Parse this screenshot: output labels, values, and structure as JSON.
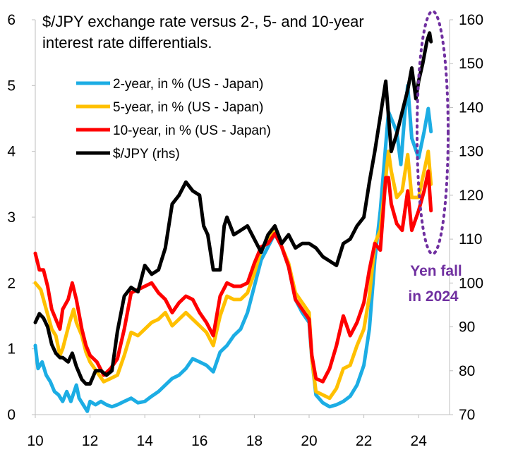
{
  "chart_data": {
    "type": "line",
    "title_lines": [
      "$/JPY exchange rate versus 2-, 5- and 10-year",
      "interest rate differentials."
    ],
    "x_ticks": [
      10,
      12,
      14,
      16,
      18,
      20,
      22,
      24
    ],
    "xlim": [
      2010,
      2025
    ],
    "y_left": {
      "lim": [
        0,
        6
      ],
      "ticks": [
        0,
        1,
        2,
        3,
        4,
        5,
        6
      ]
    },
    "y_right": {
      "lim": [
        70,
        160
      ],
      "ticks": [
        70,
        80,
        90,
        100,
        110,
        120,
        130,
        140,
        150,
        160
      ]
    },
    "series": [
      {
        "name": "2-year, in % (US - Japan)",
        "axis": "left",
        "color": "#1CADE4",
        "points": [
          [
            2010.0,
            1.05
          ],
          [
            2010.1,
            0.7
          ],
          [
            2010.25,
            0.8
          ],
          [
            2010.4,
            0.6
          ],
          [
            2010.55,
            0.5
          ],
          [
            2010.7,
            0.35
          ],
          [
            2010.85,
            0.3
          ],
          [
            2011.0,
            0.2
          ],
          [
            2011.15,
            0.35
          ],
          [
            2011.3,
            0.2
          ],
          [
            2011.5,
            0.45
          ],
          [
            2011.6,
            0.25
          ],
          [
            2011.75,
            0.15
          ],
          [
            2011.9,
            0.05
          ],
          [
            2012.0,
            0.2
          ],
          [
            2012.2,
            0.15
          ],
          [
            2012.4,
            0.2
          ],
          [
            2012.6,
            0.15
          ],
          [
            2012.8,
            0.12
          ],
          [
            2013.0,
            0.15
          ],
          [
            2013.25,
            0.2
          ],
          [
            2013.5,
            0.25
          ],
          [
            2013.75,
            0.18
          ],
          [
            2014.0,
            0.2
          ],
          [
            2014.25,
            0.28
          ],
          [
            2014.5,
            0.35
          ],
          [
            2014.75,
            0.45
          ],
          [
            2015.0,
            0.55
          ],
          [
            2015.25,
            0.6
          ],
          [
            2015.5,
            0.7
          ],
          [
            2015.75,
            0.85
          ],
          [
            2016.0,
            0.8
          ],
          [
            2016.25,
            0.75
          ],
          [
            2016.5,
            0.65
          ],
          [
            2016.75,
            0.95
          ],
          [
            2017.0,
            1.05
          ],
          [
            2017.25,
            1.2
          ],
          [
            2017.5,
            1.3
          ],
          [
            2017.75,
            1.55
          ],
          [
            2018.0,
            1.95
          ],
          [
            2018.25,
            2.35
          ],
          [
            2018.5,
            2.55
          ],
          [
            2018.75,
            2.75
          ],
          [
            2019.0,
            2.55
          ],
          [
            2019.25,
            2.25
          ],
          [
            2019.5,
            1.75
          ],
          [
            2019.75,
            1.55
          ],
          [
            2020.0,
            1.4
          ],
          [
            2020.1,
            0.85
          ],
          [
            2020.25,
            0.3
          ],
          [
            2020.5,
            0.18
          ],
          [
            2020.75,
            0.12
          ],
          [
            2021.0,
            0.15
          ],
          [
            2021.25,
            0.2
          ],
          [
            2021.5,
            0.28
          ],
          [
            2021.75,
            0.45
          ],
          [
            2022.0,
            0.75
          ],
          [
            2022.2,
            1.3
          ],
          [
            2022.4,
            2.35
          ],
          [
            2022.6,
            3.1
          ],
          [
            2022.8,
            4.1
          ],
          [
            2022.9,
            4.6
          ],
          [
            2023.0,
            4.5
          ],
          [
            2023.2,
            4.3
          ],
          [
            2023.35,
            3.8
          ],
          [
            2023.5,
            4.6
          ],
          [
            2023.6,
            5.0
          ],
          [
            2023.75,
            4.2
          ],
          [
            2024.0,
            3.9
          ],
          [
            2024.2,
            4.3
          ],
          [
            2024.35,
            4.65
          ],
          [
            2024.45,
            4.3
          ]
        ]
      },
      {
        "name": "5-year, in % (US - Japan)",
        "axis": "left",
        "color": "#FFC000",
        "points": [
          [
            2010.0,
            2.0
          ],
          [
            2010.2,
            1.9
          ],
          [
            2010.4,
            1.6
          ],
          [
            2010.6,
            1.3
          ],
          [
            2010.75,
            1.2
          ],
          [
            2010.9,
            0.9
          ],
          [
            2011.0,
            1.0
          ],
          [
            2011.25,
            1.4
          ],
          [
            2011.4,
            1.6
          ],
          [
            2011.5,
            1.4
          ],
          [
            2011.7,
            1.2
          ],
          [
            2011.85,
            0.95
          ],
          [
            2012.0,
            0.8
          ],
          [
            2012.25,
            0.65
          ],
          [
            2012.5,
            0.5
          ],
          [
            2012.75,
            0.55
          ],
          [
            2013.0,
            0.6
          ],
          [
            2013.25,
            0.9
          ],
          [
            2013.5,
            1.25
          ],
          [
            2013.75,
            1.2
          ],
          [
            2014.0,
            1.3
          ],
          [
            2014.25,
            1.4
          ],
          [
            2014.5,
            1.45
          ],
          [
            2014.75,
            1.55
          ],
          [
            2015.0,
            1.35
          ],
          [
            2015.25,
            1.45
          ],
          [
            2015.5,
            1.55
          ],
          [
            2015.75,
            1.45
          ],
          [
            2016.0,
            1.35
          ],
          [
            2016.25,
            1.25
          ],
          [
            2016.5,
            1.05
          ],
          [
            2016.75,
            1.5
          ],
          [
            2017.0,
            1.8
          ],
          [
            2017.25,
            1.75
          ],
          [
            2017.5,
            1.75
          ],
          [
            2017.75,
            1.85
          ],
          [
            2018.0,
            2.15
          ],
          [
            2018.25,
            2.5
          ],
          [
            2018.5,
            2.65
          ],
          [
            2018.75,
            2.85
          ],
          [
            2019.0,
            2.55
          ],
          [
            2019.25,
            2.3
          ],
          [
            2019.5,
            1.85
          ],
          [
            2019.75,
            1.7
          ],
          [
            2020.0,
            1.55
          ],
          [
            2020.1,
            0.85
          ],
          [
            2020.25,
            0.35
          ],
          [
            2020.5,
            0.3
          ],
          [
            2020.75,
            0.25
          ],
          [
            2021.0,
            0.4
          ],
          [
            2021.25,
            0.7
          ],
          [
            2021.5,
            0.75
          ],
          [
            2021.75,
            1.05
          ],
          [
            2022.0,
            1.3
          ],
          [
            2022.2,
            1.8
          ],
          [
            2022.4,
            2.6
          ],
          [
            2022.6,
            2.8
          ],
          [
            2022.8,
            3.6
          ],
          [
            2022.9,
            4.0
          ],
          [
            2023.0,
            3.7
          ],
          [
            2023.2,
            3.3
          ],
          [
            2023.4,
            3.4
          ],
          [
            2023.6,
            3.95
          ],
          [
            2023.75,
            3.3
          ],
          [
            2024.0,
            3.3
          ],
          [
            2024.2,
            3.7
          ],
          [
            2024.35,
            4.0
          ],
          [
            2024.45,
            3.5
          ]
        ]
      },
      {
        "name": "10-year, in % (US - Japan)",
        "axis": "left",
        "color": "#FF0000",
        "points": [
          [
            2010.0,
            2.45
          ],
          [
            2010.15,
            2.2
          ],
          [
            2010.3,
            2.2
          ],
          [
            2010.45,
            1.95
          ],
          [
            2010.6,
            1.6
          ],
          [
            2010.75,
            1.45
          ],
          [
            2010.9,
            1.3
          ],
          [
            2011.0,
            1.6
          ],
          [
            2011.2,
            1.75
          ],
          [
            2011.35,
            2.0
          ],
          [
            2011.5,
            1.75
          ],
          [
            2011.7,
            1.3
          ],
          [
            2011.85,
            1.05
          ],
          [
            2012.0,
            0.9
          ],
          [
            2012.25,
            0.8
          ],
          [
            2012.5,
            0.6
          ],
          [
            2012.75,
            0.7
          ],
          [
            2013.0,
            0.85
          ],
          [
            2013.25,
            1.3
          ],
          [
            2013.5,
            1.85
          ],
          [
            2013.75,
            1.9
          ],
          [
            2014.0,
            1.95
          ],
          [
            2014.25,
            2.0
          ],
          [
            2014.5,
            1.85
          ],
          [
            2014.75,
            1.75
          ],
          [
            2015.0,
            1.55
          ],
          [
            2015.25,
            1.7
          ],
          [
            2015.5,
            1.8
          ],
          [
            2015.75,
            1.75
          ],
          [
            2016.0,
            1.55
          ],
          [
            2016.25,
            1.4
          ],
          [
            2016.5,
            1.2
          ],
          [
            2016.75,
            1.8
          ],
          [
            2017.0,
            2.0
          ],
          [
            2017.25,
            1.95
          ],
          [
            2017.5,
            1.95
          ],
          [
            2017.75,
            2.0
          ],
          [
            2018.0,
            2.3
          ],
          [
            2018.25,
            2.55
          ],
          [
            2018.5,
            2.6
          ],
          [
            2018.75,
            2.75
          ],
          [
            2019.0,
            2.55
          ],
          [
            2019.25,
            2.25
          ],
          [
            2019.5,
            1.75
          ],
          [
            2019.75,
            1.6
          ],
          [
            2020.0,
            1.45
          ],
          [
            2020.1,
            0.9
          ],
          [
            2020.25,
            0.55
          ],
          [
            2020.5,
            0.5
          ],
          [
            2020.75,
            0.7
          ],
          [
            2021.0,
            1.05
          ],
          [
            2021.25,
            1.5
          ],
          [
            2021.5,
            1.2
          ],
          [
            2021.75,
            1.4
          ],
          [
            2022.0,
            1.7
          ],
          [
            2022.2,
            2.2
          ],
          [
            2022.4,
            2.6
          ],
          [
            2022.6,
            2.5
          ],
          [
            2022.8,
            3.6
          ],
          [
            2022.9,
            3.6
          ],
          [
            2023.0,
            3.2
          ],
          [
            2023.2,
            2.9
          ],
          [
            2023.4,
            2.8
          ],
          [
            2023.6,
            3.4
          ],
          [
            2023.75,
            2.8
          ],
          [
            2024.0,
            3.1
          ],
          [
            2024.2,
            3.4
          ],
          [
            2024.35,
            3.7
          ],
          [
            2024.45,
            3.1
          ]
        ]
      },
      {
        "name": "$/JPY (rhs)",
        "axis": "right",
        "color": "#000000",
        "points": [
          [
            2010.0,
            91
          ],
          [
            2010.15,
            93
          ],
          [
            2010.3,
            92
          ],
          [
            2010.45,
            90
          ],
          [
            2010.6,
            86
          ],
          [
            2010.75,
            84
          ],
          [
            2010.9,
            83
          ],
          [
            2011.0,
            83
          ],
          [
            2011.2,
            82
          ],
          [
            2011.35,
            84
          ],
          [
            2011.5,
            81
          ],
          [
            2011.7,
            78
          ],
          [
            2011.85,
            77
          ],
          [
            2012.0,
            77
          ],
          [
            2012.2,
            80
          ],
          [
            2012.4,
            80
          ],
          [
            2012.6,
            79
          ],
          [
            2012.8,
            80
          ],
          [
            2013.0,
            89
          ],
          [
            2013.25,
            97
          ],
          [
            2013.5,
            99
          ],
          [
            2013.75,
            98
          ],
          [
            2014.0,
            104
          ],
          [
            2014.25,
            102
          ],
          [
            2014.5,
            103
          ],
          [
            2014.75,
            108
          ],
          [
            2015.0,
            118
          ],
          [
            2015.25,
            120
          ],
          [
            2015.5,
            123
          ],
          [
            2015.75,
            121
          ],
          [
            2016.0,
            120
          ],
          [
            2016.15,
            113
          ],
          [
            2016.3,
            111
          ],
          [
            2016.5,
            103
          ],
          [
            2016.75,
            103
          ],
          [
            2016.9,
            113
          ],
          [
            2017.0,
            115
          ],
          [
            2017.25,
            111
          ],
          [
            2017.5,
            112
          ],
          [
            2017.75,
            113
          ],
          [
            2018.0,
            110
          ],
          [
            2018.25,
            107
          ],
          [
            2018.5,
            111
          ],
          [
            2018.75,
            113
          ],
          [
            2019.0,
            109
          ],
          [
            2019.25,
            111
          ],
          [
            2019.5,
            108
          ],
          [
            2019.75,
            109
          ],
          [
            2020.0,
            109
          ],
          [
            2020.25,
            108
          ],
          [
            2020.5,
            106
          ],
          [
            2020.75,
            105
          ],
          [
            2021.0,
            104
          ],
          [
            2021.25,
            109
          ],
          [
            2021.5,
            110
          ],
          [
            2021.75,
            113
          ],
          [
            2022.0,
            115
          ],
          [
            2022.2,
            123
          ],
          [
            2022.4,
            130
          ],
          [
            2022.6,
            138
          ],
          [
            2022.8,
            146
          ],
          [
            2022.9,
            138
          ],
          [
            2023.0,
            130
          ],
          [
            2023.2,
            134
          ],
          [
            2023.4,
            139
          ],
          [
            2023.6,
            144
          ],
          [
            2023.75,
            149
          ],
          [
            2023.9,
            142
          ],
          [
            2024.0,
            146
          ],
          [
            2024.15,
            150
          ],
          [
            2024.3,
            155
          ],
          [
            2024.4,
            157
          ],
          [
            2024.45,
            155
          ]
        ]
      }
    ],
    "legend_position": "upper-left",
    "annotation": {
      "lines": [
        "Yen fall",
        "in 2024"
      ],
      "color": "#7030A0"
    }
  }
}
